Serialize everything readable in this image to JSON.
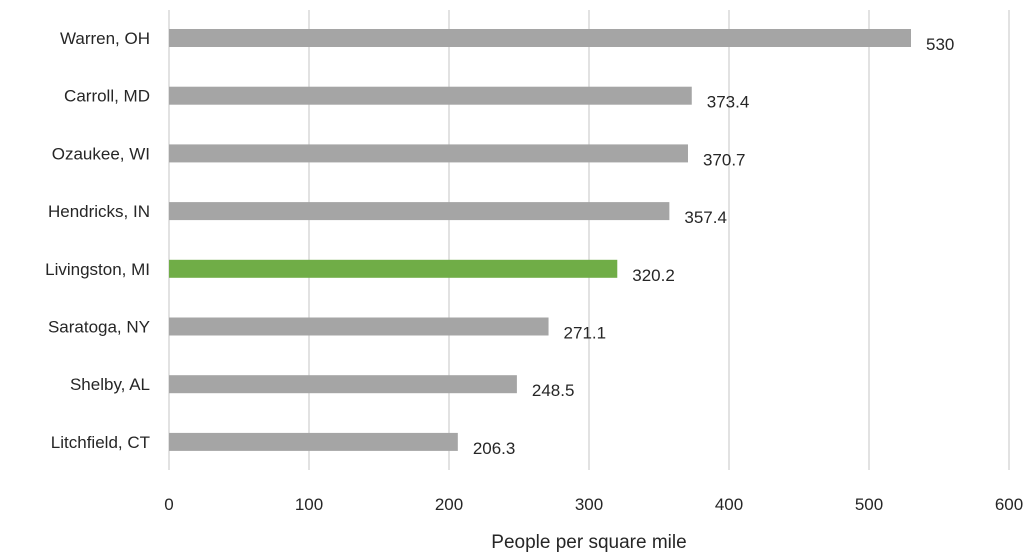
{
  "chart_data": {
    "type": "bar",
    "orientation": "horizontal",
    "categories": [
      "Warren, OH",
      "Carroll, MD",
      "Ozaukee, WI",
      "Hendricks, IN",
      "Livingston, MI",
      "Saratoga, NY",
      "Shelby, AL",
      "Litchfield, CT"
    ],
    "values": [
      530,
      373.4,
      370.7,
      357.4,
      320.2,
      271.1,
      248.5,
      206.3
    ],
    "data_labels": [
      "530",
      "373.4",
      "370.7",
      "357.4",
      "320.2",
      "271.1",
      "248.5",
      "206.3"
    ],
    "highlight_category": "Livingston, MI",
    "title": "",
    "xlabel": "People per square mile",
    "ylabel": "",
    "xlim": [
      0,
      600
    ],
    "xticks": [
      0,
      100,
      200,
      300,
      400,
      500,
      600
    ],
    "xtick_labels": [
      "0",
      "100",
      "200",
      "300",
      "400",
      "500",
      "600"
    ],
    "grid": "vertical",
    "legend": "none",
    "colors": {
      "bar": "#a5a5a5",
      "highlight": "#70ad47",
      "grid": "#d9d9d9",
      "text": "#262626"
    }
  }
}
